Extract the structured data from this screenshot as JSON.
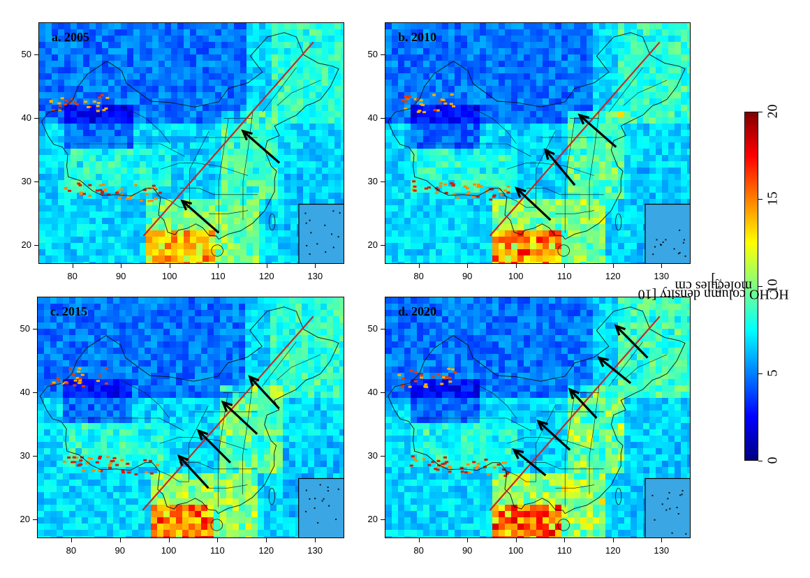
{
  "panels": [
    {
      "label": "a. 2005"
    },
    {
      "label": "b. 2010"
    },
    {
      "label": "c. 2015"
    },
    {
      "label": "d. 2020"
    }
  ],
  "axes": {
    "x_ticks": [
      "80",
      "90",
      "100",
      "110",
      "120",
      "130"
    ],
    "y_ticks": [
      "50",
      "40",
      "30",
      "20"
    ]
  },
  "colorbar": {
    "title_prefix": "HCHO column density [10",
    "title_sup1": "15",
    "title_mid": " molecules cm",
    "title_sup2": "-2",
    "title_suffix": "]",
    "ticks": [
      "20",
      "15",
      "10",
      "5",
      "0"
    ],
    "colors": [
      "#000080",
      "#0000ff",
      "#0080ff",
      "#00ffff",
      "#80ff80",
      "#ffff00",
      "#ff8000",
      "#ff0000",
      "#800000"
    ]
  }
}
